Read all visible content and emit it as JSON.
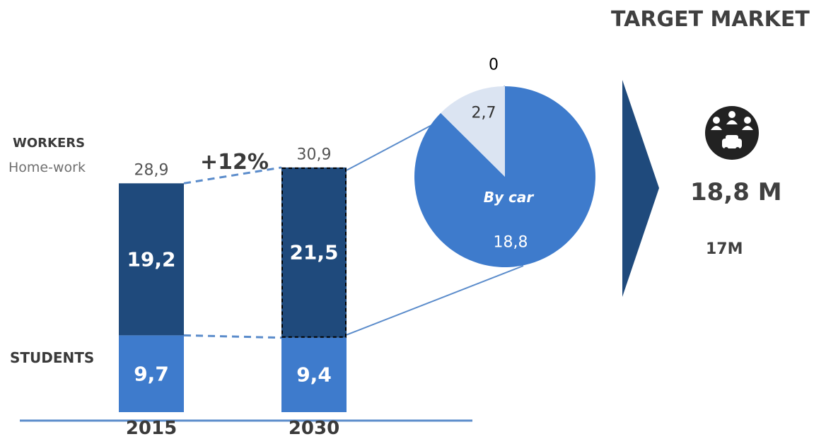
{
  "chart_data": {
    "type": "bar",
    "stacked": true,
    "categories": [
      "2015",
      "2030"
    ],
    "series": [
      {
        "name": "STUDENTS",
        "values": [
          9.7,
          9.4
        ],
        "labels": [
          "9,7",
          "9,4"
        ],
        "color": "#3e7bcc"
      },
      {
        "name": "WORKERS",
        "values": [
          19.2,
          21.5
        ],
        "labels": [
          "19,2",
          "21,5"
        ],
        "color": "#1f4a7c"
      }
    ],
    "totals": [
      "28,9",
      "30,9"
    ],
    "workers_subtitle": "Home-work",
    "growth_label": "+12%",
    "grid": false,
    "pie": {
      "type": "pie",
      "slices": [
        {
          "name": "By car",
          "value": 18.8,
          "label": "18,8",
          "color": "#3e7bcc"
        },
        {
          "name": "",
          "value": 2.7,
          "label": "2,7",
          "color": "#dbe4f2"
        },
        {
          "name": "",
          "value": 0,
          "label": "0",
          "color": "#cccccc"
        }
      ]
    }
  },
  "target_market": {
    "title": "TARGET MARKET",
    "value": "18,8 M",
    "subvalue": "17M",
    "icon": "commuters-car-icon"
  },
  "colors": {
    "dark_blue": "#1f4a7c",
    "mid_blue": "#3e7bcc",
    "light_blue": "#dbe4f2",
    "line_blue": "#5b8ccb",
    "arrow": "#1f4a7c",
    "icon_bg": "#222222"
  }
}
